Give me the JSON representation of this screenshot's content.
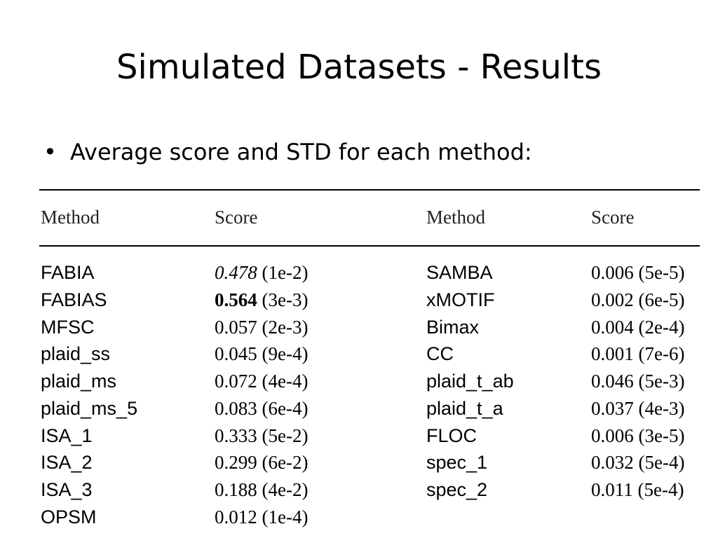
{
  "title": "Simulated Datasets - Results",
  "bullet": {
    "glyph": "•",
    "text": "Average score and STD for each method:"
  },
  "table": {
    "headers": [
      "Method",
      "Score",
      "Method",
      "Score"
    ],
    "left_rows": [
      {
        "method": "FABIA",
        "score": "0.478",
        "std": "(1e-2)",
        "style": "italic"
      },
      {
        "method": "FABIAS",
        "score": "0.564",
        "std": "(3e-3)",
        "style": "bold"
      },
      {
        "method": "MFSC",
        "score": "0.057",
        "std": "(2e-3)",
        "style": "normal"
      },
      {
        "method": "plaid_ss",
        "score": "0.045",
        "std": "(9e-4)",
        "style": "normal"
      },
      {
        "method": "plaid_ms",
        "score": "0.072",
        "std": "(4e-4)",
        "style": "normal"
      },
      {
        "method": "plaid_ms_5",
        "score": "0.083",
        "std": "(6e-4)",
        "style": "normal"
      },
      {
        "method": "ISA_1",
        "score": "0.333",
        "std": "(5e-2)",
        "style": "normal"
      },
      {
        "method": "ISA_2",
        "score": "0.299",
        "std": "(6e-2)",
        "style": "normal"
      },
      {
        "method": "ISA_3",
        "score": "0.188",
        "std": "(4e-2)",
        "style": "normal"
      },
      {
        "method": "OPSM",
        "score": "0.012",
        "std": "(1e-4)",
        "style": "normal"
      }
    ],
    "right_rows": [
      {
        "method": "SAMBA",
        "score": "0.006",
        "std": "(5e-5)",
        "style": "normal"
      },
      {
        "method": "xMOTIF",
        "score": "0.002",
        "std": "(6e-5)",
        "style": "normal"
      },
      {
        "method": "Bimax",
        "score": "0.004",
        "std": "(2e-4)",
        "style": "normal"
      },
      {
        "method": "CC",
        "score": "0.001",
        "std": "(7e-6)",
        "style": "normal"
      },
      {
        "method": "plaid_t_ab",
        "score": "0.046",
        "std": "(5e-3)",
        "style": "normal"
      },
      {
        "method": "plaid_t_a",
        "score": "0.037",
        "std": "(4e-3)",
        "style": "normal"
      },
      {
        "method": "FLOC",
        "score": "0.006",
        "std": "(3e-5)",
        "style": "normal"
      },
      {
        "method": "spec_1",
        "score": "0.032",
        "std": "(5e-4)",
        "style": "normal"
      },
      {
        "method": "spec_2",
        "score": "0.011",
        "std": "(5e-4)",
        "style": "normal"
      }
    ]
  }
}
